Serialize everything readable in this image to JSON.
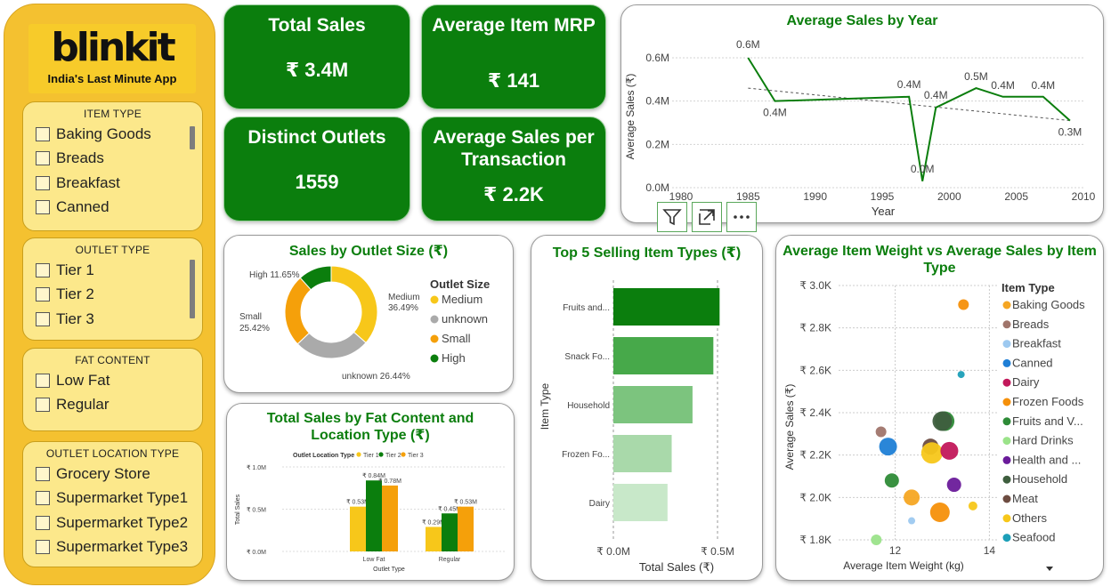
{
  "brand": {
    "name": "blinkit",
    "tagline": "India's Last Minute App"
  },
  "slicers": [
    {
      "title": "ITEM TYPE",
      "options": [
        "Baking Goods",
        "Breads",
        "Breakfast",
        "Canned"
      ]
    },
    {
      "title": "OUTLET TYPE",
      "options": [
        "Tier 1",
        "Tier 2",
        "Tier 3"
      ]
    },
    {
      "title": "FAT CONTENT",
      "options": [
        "Low Fat",
        "Regular"
      ]
    },
    {
      "title": "OUTLET LOCATION TYPE",
      "options": [
        "Grocery Store",
        "Supermarket Type1",
        "Supermarket Type2",
        "Supermarket Type3"
      ]
    }
  ],
  "kpis": [
    {
      "title": "Total Sales",
      "value": "₹ 3.4M"
    },
    {
      "title": "Average Item MRP",
      "value": "₹ 141"
    },
    {
      "title": "Distinct Outlets",
      "value": "1559"
    },
    {
      "title": "Average Sales per Transaction",
      "value": "₹ 2.2K"
    }
  ],
  "colors": {
    "green": "#0B7E0D",
    "yellow": "#F7C71A",
    "orange": "#F5A00A",
    "grey": "#AAAAAA",
    "sidebar": "#F4C130"
  },
  "visual_actions": [
    "filter-icon",
    "focus-mode-icon",
    "more-options-icon"
  ],
  "chart_data": [
    {
      "type": "line",
      "title": "Average Sales by Year",
      "xlabel": "Year",
      "ylabel": "Average Sales (₹)",
      "xlim": [
        1980,
        2010
      ],
      "ylim": [
        0,
        0.6
      ],
      "x_ticks": [
        "1980",
        "1985",
        "1990",
        "1995",
        "2000",
        "2005",
        "2010"
      ],
      "y_ticks": [
        "0.0M",
        "0.2M",
        "0.4M",
        "0.6M"
      ],
      "x": [
        1985,
        1987,
        1997,
        1998,
        1999,
        2002,
        2004,
        2007,
        2009
      ],
      "values": [
        0.6,
        0.4,
        0.42,
        0.03,
        0.37,
        0.46,
        0.42,
        0.42,
        0.31
      ],
      "data_labels": [
        "0.6M",
        "0.4M",
        "0.4M",
        "0.0M",
        "0.4M",
        "0.5M",
        "0.4M",
        "0.4M",
        "0.3M"
      ],
      "trend": [
        0.46,
        0.31
      ],
      "grid": true
    },
    {
      "type": "pie",
      "title": "Sales by Outlet Size (₹)",
      "legend_title": "Outlet Size",
      "legend_position": "right",
      "categories": [
        "Medium",
        "unknown",
        "Small",
        "High"
      ],
      "values": [
        36.49,
        26.44,
        25.42,
        11.65
      ],
      "data_labels": [
        "Medium 36.49%",
        "unknown 26.44%",
        "Small 25.42%",
        "High 11.65%"
      ],
      "colors": [
        "#F7C71A",
        "#AAAAAA",
        "#F5A00A",
        "#0B7E0D"
      ]
    },
    {
      "type": "bar",
      "title": "Total Sales by Fat Content and Location Type (₹)",
      "legend_title": "Outlet Location Type",
      "legend_position": "top",
      "xlabel": "Outlet Type",
      "ylabel": "Total Sales",
      "ylim": [
        0,
        1.0
      ],
      "y_ticks": [
        "₹ 0.0M",
        "₹ 0.5M",
        "₹ 1.0M"
      ],
      "categories": [
        "Low Fat",
        "Regular"
      ],
      "series": [
        {
          "name": "Tier 1",
          "values": [
            0.53,
            0.29
          ],
          "labels": [
            "₹ 0.53M",
            "₹ 0.29M"
          ],
          "color": "#F7C71A"
        },
        {
          "name": "Tier 2",
          "values": [
            0.84,
            0.45
          ],
          "labels": [
            "₹ 0.84M",
            "₹ 0.45M"
          ],
          "color": "#0B7E0D"
        },
        {
          "name": "Tier 3",
          "values": [
            0.78,
            0.53
          ],
          "labels": [
            "₹ 0.78M",
            "₹ 0.53M"
          ],
          "color": "#F5A00A"
        }
      ]
    },
    {
      "type": "bar",
      "orientation": "horizontal",
      "title": "Top 5 Selling Item Types (₹)",
      "xlabel": "Total Sales (₹)",
      "ylabel": "Item Type",
      "xlim": [
        0,
        0.5
      ],
      "x_ticks": [
        "₹ 0.0M",
        "₹ 0.5M"
      ],
      "categories": [
        "Fruits and...",
        "Snack Fo...",
        "Household",
        "Frozen Fo...",
        "Dairy"
      ],
      "values": [
        0.51,
        0.48,
        0.38,
        0.28,
        0.26
      ],
      "colors": [
        "#0B7E0D",
        "#47A94A",
        "#7CC47E",
        "#A9D9AA",
        "#C8E8C9"
      ]
    },
    {
      "type": "scatter",
      "title": "Average Item Weight vs Average Sales by Item Type",
      "xlabel": "Average Item Weight (kg)",
      "ylabel": "Average Sales (₹)",
      "xlim": [
        10.8,
        14.2
      ],
      "ylim": [
        1.8,
        3.0
      ],
      "x_ticks": [
        "12",
        "14"
      ],
      "y_ticks": [
        "₹ 1.8K",
        "₹ 2.0K",
        "₹ 2.2K",
        "₹ 2.4K",
        "₹ 2.6K",
        "₹ 2.8K",
        "₹ 3.0K"
      ],
      "legend_title": "Item Type",
      "legend_position": "right",
      "categories": [
        "Baking Goods",
        "Breads",
        "Breakfast",
        "Canned",
        "Dairy",
        "Frozen Foods",
        "Fruits and V...",
        "Hard Drinks",
        "Health and ...",
        "Household",
        "Meat",
        "Others",
        "Seafood"
      ],
      "category_colors": [
        "#F5A623",
        "#A0756B",
        "#9DC9F0",
        "#1F7FD6",
        "#C2185B",
        "#F5900A",
        "#2E8B37",
        "#9BE38A",
        "#6A1B9A",
        "#3E5E3E",
        "#6D4C41",
        "#F7C71A",
        "#1C9FB8"
      ],
      "points": [
        {
          "x": 13.45,
          "y": 2.91,
          "size": 6,
          "cat": 5
        },
        {
          "x": 13.4,
          "y": 2.58,
          "size": 4,
          "cat": 12
        },
        {
          "x": 13.05,
          "y": 2.36,
          "size": 11,
          "cat": 6
        },
        {
          "x": 13.0,
          "y": 2.36,
          "size": 11,
          "cat": 9
        },
        {
          "x": 11.7,
          "y": 2.31,
          "size": 6,
          "cat": 1
        },
        {
          "x": 11.85,
          "y": 2.24,
          "size": 10,
          "cat": 3
        },
        {
          "x": 12.75,
          "y": 2.24,
          "size": 9,
          "cat": 10
        },
        {
          "x": 12.78,
          "y": 2.21,
          "size": 12,
          "cat": 11
        },
        {
          "x": 13.15,
          "y": 2.22,
          "size": 10,
          "cat": 4
        },
        {
          "x": 11.93,
          "y": 2.08,
          "size": 8,
          "cat": 6
        },
        {
          "x": 13.25,
          "y": 2.06,
          "size": 8,
          "cat": 8
        },
        {
          "x": 12.35,
          "y": 2.0,
          "size": 9,
          "cat": 0
        },
        {
          "x": 12.95,
          "y": 1.93,
          "size": 11,
          "cat": 5
        },
        {
          "x": 13.65,
          "y": 1.96,
          "size": 5,
          "cat": 11
        },
        {
          "x": 12.35,
          "y": 1.89,
          "size": 4,
          "cat": 2
        },
        {
          "x": 11.6,
          "y": 1.8,
          "size": 6,
          "cat": 7
        }
      ]
    }
  ]
}
